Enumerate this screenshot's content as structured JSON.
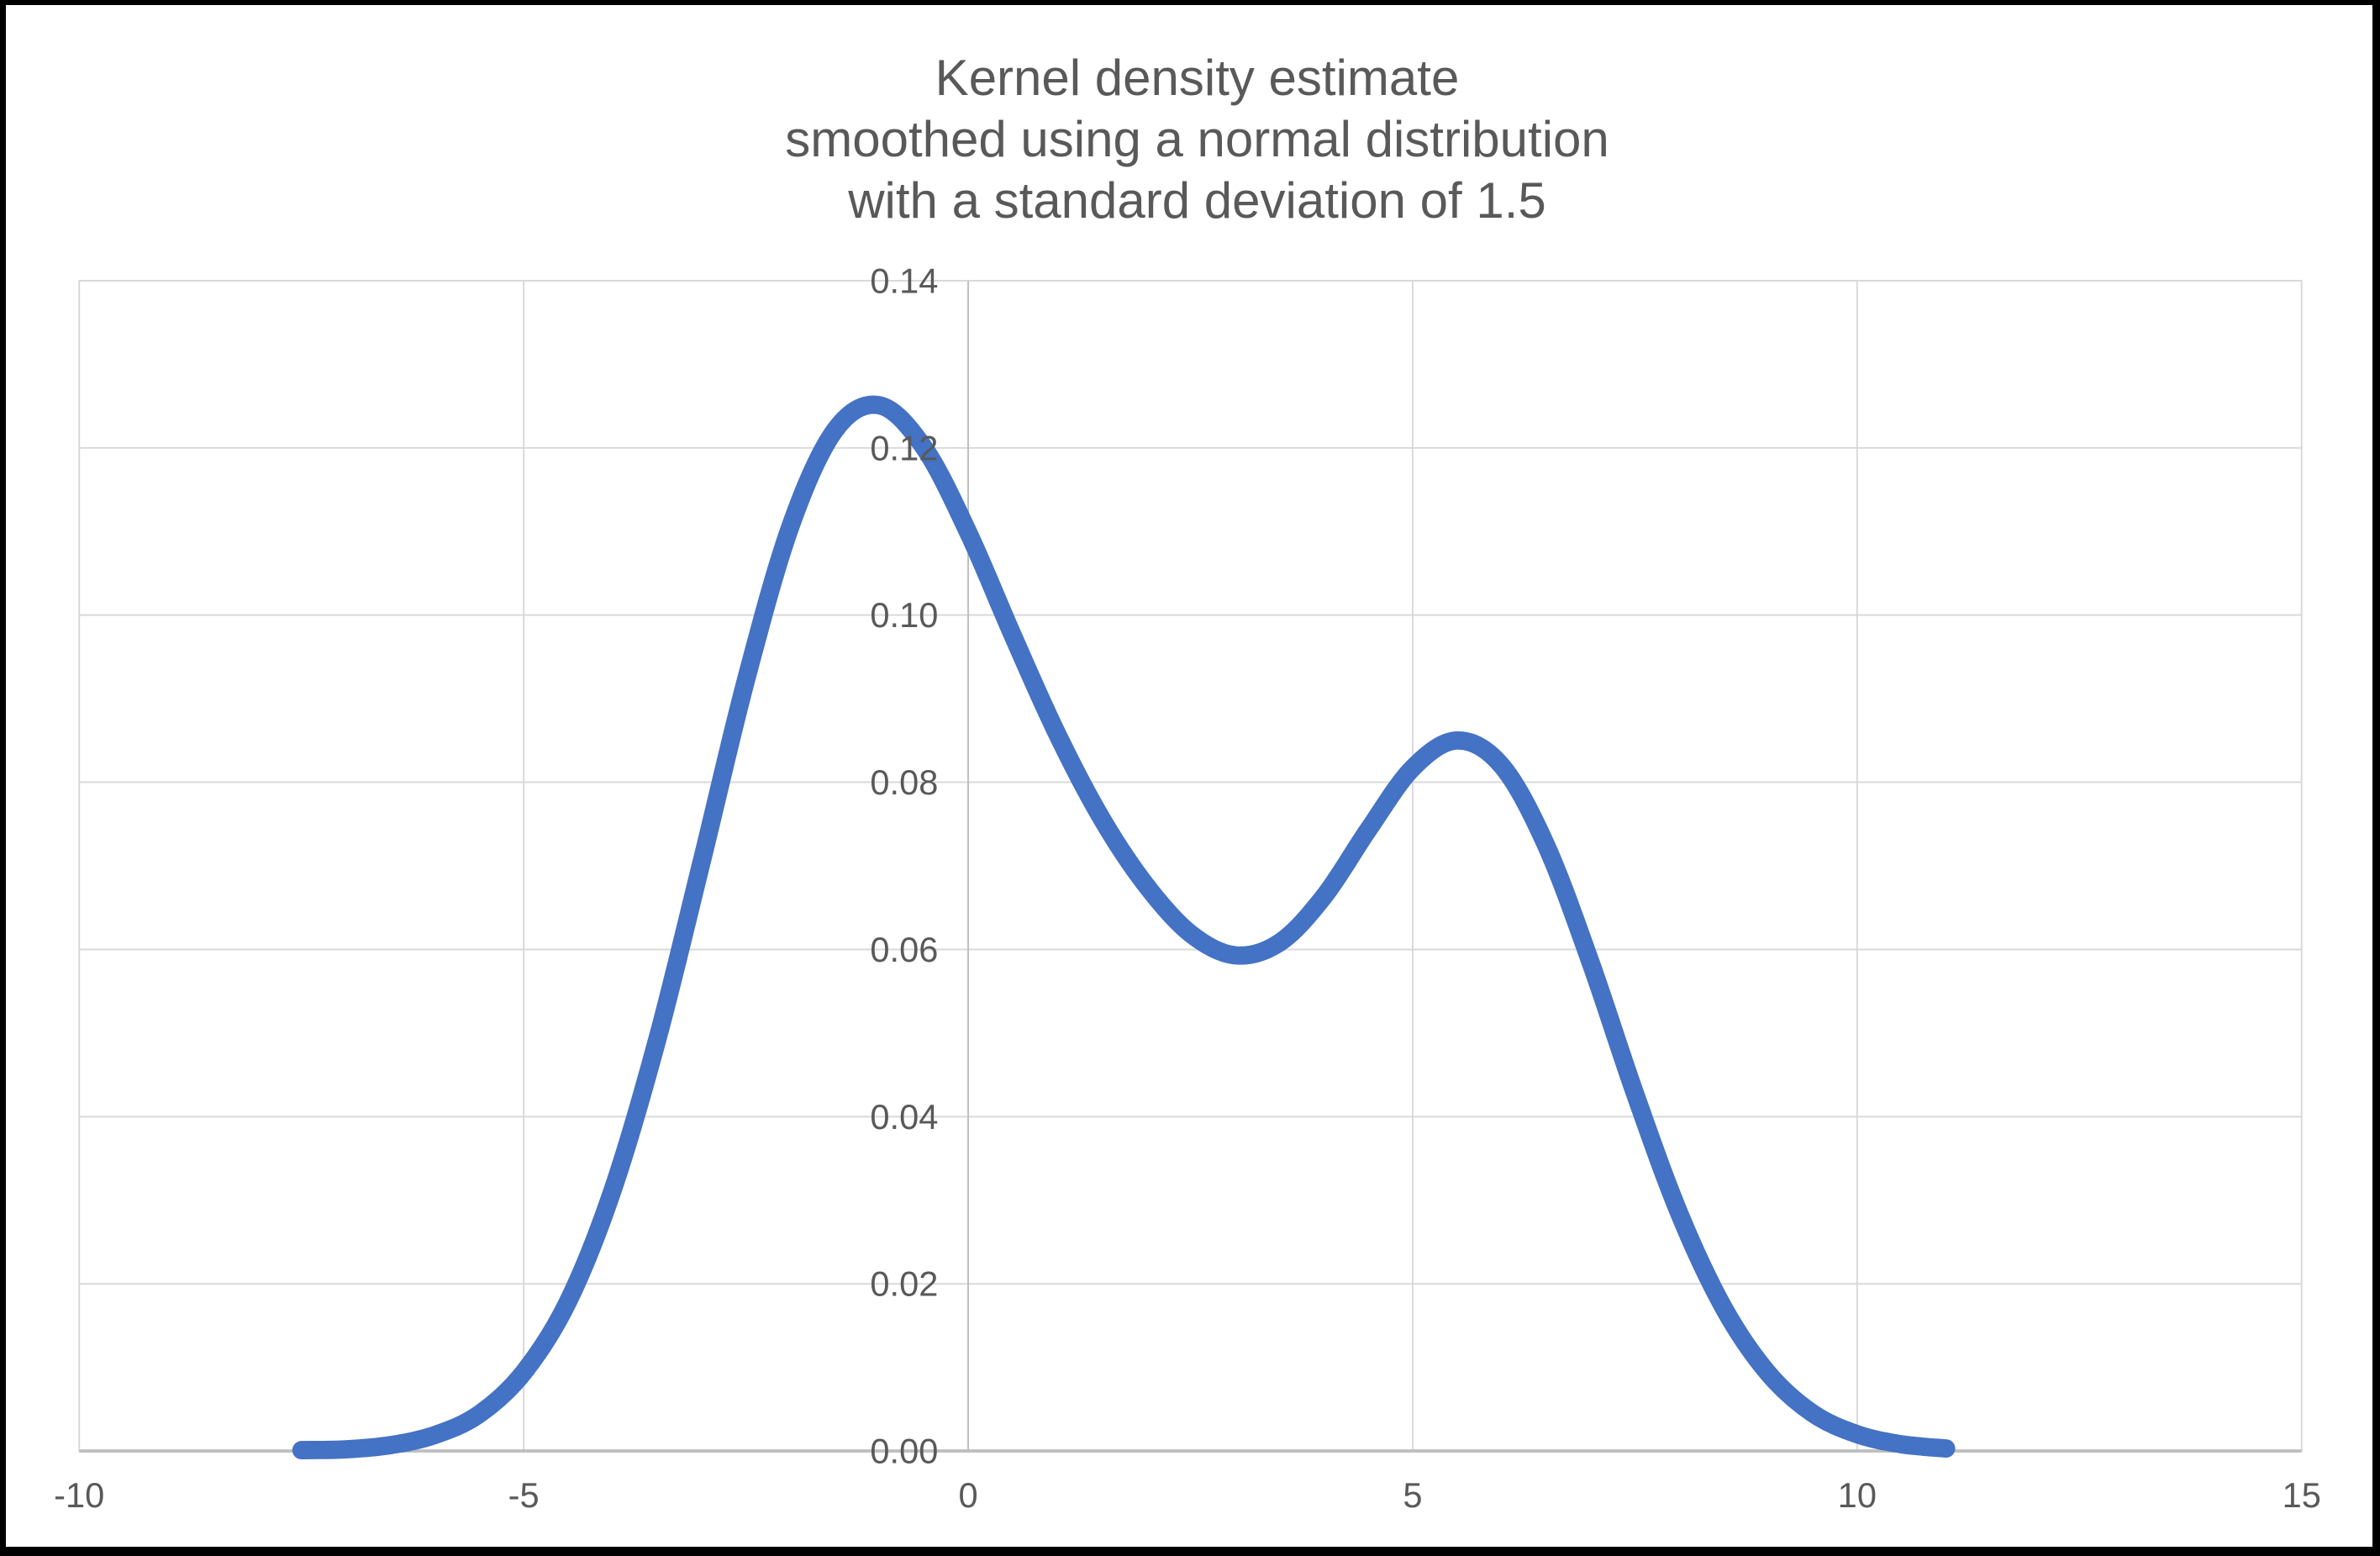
{
  "title": {
    "lines": [
      "Kernel density estimate",
      "smoothed using a normal distribution",
      "with a standard deviation of 1.5"
    ],
    "color": "#595959"
  },
  "chart_data": {
    "type": "line",
    "title": "Kernel density estimate smoothed using a normal distribution with a standard deviation of 1.5",
    "xlabel": "",
    "ylabel": "",
    "xlim": [
      -10,
      15
    ],
    "ylim": [
      0,
      0.14
    ],
    "x_tick_values": [
      -10,
      -5,
      0,
      5,
      10,
      15
    ],
    "x_tick_labels": [
      "-10",
      "-5",
      "0",
      "5",
      "10",
      "15"
    ],
    "y_tick_values": [
      0,
      0.02,
      0.04,
      0.06,
      0.08,
      0.1,
      0.12,
      0.14
    ],
    "y_tick_labels": [
      "0.00",
      "0.02",
      "0.04",
      "0.06",
      "0.08",
      "0.10",
      "0.12",
      "0.14"
    ],
    "grid": true,
    "legend_position": "none",
    "y_axis_crosses_at_x": 0,
    "colors": {
      "line": "#4472C4",
      "gridline": "#D9D9D9",
      "axis": "#BFBFBF",
      "labels": "#595959",
      "plot_border": "#D9D9D9",
      "background": "#FFFFFF",
      "frame": "#000000"
    },
    "series": [
      {
        "name": "Kernel density estimate",
        "stroke_width": 22,
        "x": [
          -7.5,
          -7,
          -6.5,
          -6,
          -5.5,
          -5,
          -4.5,
          -4,
          -3.5,
          -3,
          -2.5,
          -2,
          -1.5,
          -1,
          -0.5,
          0,
          0.5,
          1,
          1.5,
          2,
          2.5,
          3,
          3.5,
          4,
          4.5,
          5,
          5.5,
          6,
          6.5,
          7,
          7.5,
          8,
          8.5,
          9,
          9.5,
          10,
          10.5,
          11
        ],
        "y": [
          0.0001,
          0.0002,
          0.0007,
          0.0019,
          0.0044,
          0.0094,
          0.0179,
          0.0312,
          0.0491,
          0.0704,
          0.0922,
          0.1106,
          0.1221,
          0.1251,
          0.1201,
          0.1099,
          0.0976,
          0.0858,
          0.0757,
          0.0677,
          0.0619,
          0.0593,
          0.0608,
          0.0663,
          0.0743,
          0.0817,
          0.085,
          0.082,
          0.0725,
          0.0585,
          0.0428,
          0.0284,
          0.0171,
          0.0093,
          0.0045,
          0.002,
          0.0008,
          0.0003
        ]
      }
    ]
  }
}
